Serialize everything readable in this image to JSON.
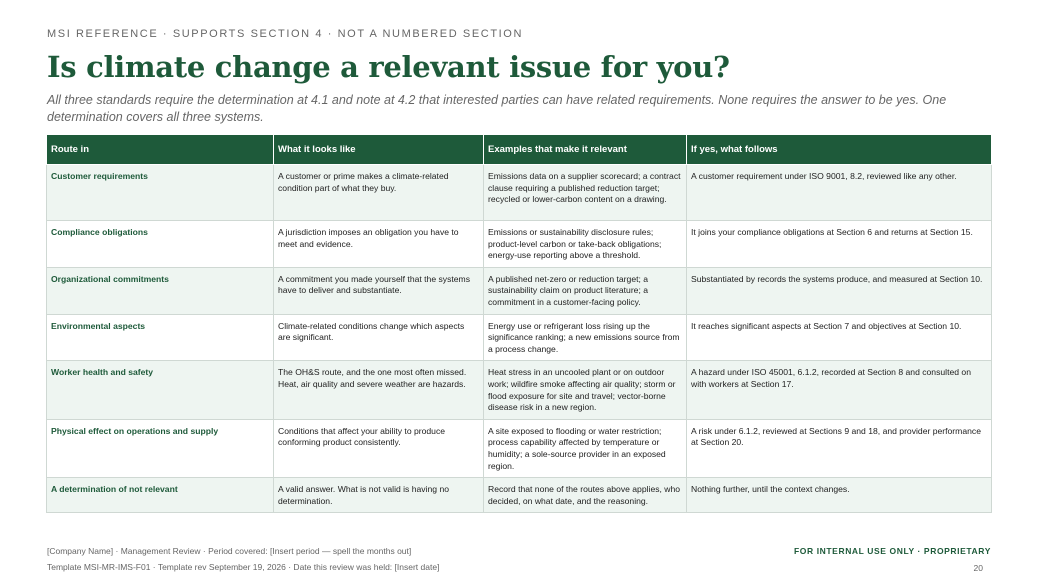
{
  "eyebrow": "MSI REFERENCE  ·  SUPPORTS SECTION 4  ·  NOT A NUMBERED SECTION",
  "title": "Is climate change a relevant issue for you?",
  "subtitle": "All three standards require the determination at 4.1 and note at 4.2 that interested parties can have related requirements. None requires the answer to be yes. One determination covers all three systems.",
  "table": {
    "headers": [
      "Route in",
      "What it looks like",
      "Examples that make it relevant",
      "If yes, what follows"
    ],
    "rows": [
      {
        "route": "Customer requirements",
        "looks": "A customer or prime makes a climate-related condition part of what they buy.",
        "examples": "Emissions data on a supplier scorecard; a contract clause requiring a published reduction target; recycled or lower-carbon content on a drawing.",
        "follows": "A customer requirement under ISO 9001, 8.2, reviewed like any other."
      },
      {
        "route": "Compliance obligations",
        "looks": "A jurisdiction imposes an obligation you have to meet and evidence.",
        "examples": "Emissions or sustainability disclosure rules; product-level carbon or take-back obligations; energy-use reporting above a threshold.",
        "follows": "It joins your compliance obligations at Section 6 and returns at Section 15."
      },
      {
        "route": "Organizational commitments",
        "looks": "A commitment you made yourself that the systems have to deliver and substantiate.",
        "examples": "A published net-zero or reduction target; a sustainability claim on product literature; a commitment in a customer-facing policy.",
        "follows": "Substantiated by records the systems produce, and measured at Section 10."
      },
      {
        "route": "Environmental aspects",
        "looks": "Climate-related conditions change which aspects are significant.",
        "examples": "Energy use or refrigerant loss rising up the significance ranking; a new emissions source from a process change.",
        "follows": "It reaches significant aspects at Section 7 and objectives at Section 10."
      },
      {
        "route": "Worker health and safety",
        "looks": "The OH&S route, and the one most often missed. Heat, air quality and severe weather are hazards.",
        "examples": "Heat stress in an uncooled plant or on outdoor work; wildfire smoke affecting air quality; storm or flood exposure for site and travel; vector-borne disease risk in a new region.",
        "follows": "A hazard under ISO 45001, 6.1.2, recorded at Section 8 and consulted on with workers at Section 17."
      },
      {
        "route": "Physical effect on operations and supply",
        "looks": "Conditions that affect your ability to produce conforming product consistently.",
        "examples": "A site exposed to flooding or water restriction; process capability affected by temperature or humidity; a sole-source provider in an exposed region.",
        "follows": "A risk under 6.1.2, reviewed at Sections 9 and 18, and provider performance at Section 20."
      },
      {
        "route": "A determination of not relevant",
        "looks": "A valid answer. What is not valid is having no determination.",
        "examples": "Record that none of the routes above applies, who decided, on what date, and the reasoning.",
        "follows": "Nothing further, until the context changes."
      }
    ]
  },
  "footer": {
    "line1": "[Company Name]  ·  Management Review  ·  Period covered: [Insert period — spell the months out]",
    "line2": "Template MSI-MR-IMS-F01  ·  Template rev September 19, 2026  ·  Date this review was held: [Insert date]",
    "classification": "FOR INTERNAL USE ONLY  ·  PROPRIETARY",
    "page": "20"
  },
  "colors": {
    "accent": "#1e5a3a",
    "row_tint": "#eef5f1",
    "muted": "#666666"
  }
}
